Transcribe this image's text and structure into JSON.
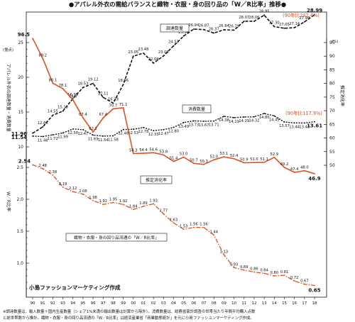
{
  "chart_data": {
    "type": "line",
    "title": "●アパレル外衣の需給バランスと織物・衣服・身の回り品の「W／R比率」推移●",
    "x": [
      "90",
      "91",
      "92",
      "93",
      "94",
      "95",
      "96",
      "97",
      "98",
      "99",
      "00",
      "01",
      "02",
      "03",
      "04",
      "05",
      "06",
      "07",
      "08",
      "09",
      "10",
      "11",
      "12",
      "13",
      "14",
      "15",
      "16",
      "17",
      "18"
    ],
    "left_axis_top": {
      "unit": "(億点)",
      "label": "アパレル外衣の調達数量・消費数量",
      "ylim": [
        10,
        25
      ],
      "ticks": [
        "10",
        "15",
        "20",
        "25"
      ]
    },
    "left_axis_bottom": {
      "label": "W／R比率",
      "ylim": [
        0.5,
        2.5
      ],
      "ticks": [
        "1.0",
        "1.5",
        "2.0",
        "2.5"
      ]
    },
    "right_axis": {
      "unit": "(%)",
      "label": "推定消化率",
      "ylim": [
        50,
        95
      ],
      "ticks": [
        "50",
        "55",
        "60",
        "65",
        "70",
        "75",
        "80",
        "85",
        "90",
        "95"
      ]
    },
    "series": [
      {
        "name": "調達数量",
        "axis": "left_top",
        "style": "dashed",
        "color": "#111111",
        "values": [
          11.96,
          12.86,
          14.55,
          15.13,
          16.95,
          18.53,
          19.12,
          17.11,
          16.29,
          18.96,
          23.05,
          23.48,
          22.04,
          23.08,
          24.53,
          25.94,
          26.94,
          26.87,
          26.37,
          26.84,
          26.79,
          28.07,
          28.06,
          28.95,
          27.3,
          27.05,
          27.14,
          27.98,
          28.99
        ],
        "labels": [
          "11.96",
          "12.86",
          "14.55",
          "15.13",
          "16.95",
          "18.53",
          "19.12",
          "17.11",
          "16.29",
          "18.96",
          "23.05",
          "23.48",
          "22.04",
          "23.08",
          "24.53",
          "25.94",
          "26.94",
          "26.87",
          "26.37",
          "26.84",
          "26.79",
          "28.07",
          "28.06",
          "28.95",
          "27.30",
          "27.05",
          "27.14",
          "27.98",
          "28.99"
        ]
      },
      {
        "name": "消費数量",
        "axis": "left_top",
        "style": "dotted",
        "color": "#111111",
        "values": [
          11.54,
          11.48,
          11.72,
          11.99,
          12.56,
          12.47,
          11.69,
          11.54,
          11.58,
          12.48,
          12.53,
          12.78,
          12.33,
          12.47,
          12.8,
          13.49,
          13.73,
          13.67,
          13.71,
          14.38,
          14.19,
          14.29,
          14.32,
          14.8,
          14.45,
          13.57,
          13.44,
          13.43,
          13.61
        ],
        "labels": [
          "11.54",
          "11.48",
          "11.72",
          "11.99",
          "12.56",
          "12.47",
          "11.69",
          "11.54",
          "11.58",
          "12.48",
          "12.53",
          "12.78",
          "12.33",
          "12.47",
          "12.80",
          "13.49",
          "13.73",
          "13.67",
          "13.71",
          "14.38",
          "14.19",
          "14.29",
          "14.32",
          "14.80",
          "14.45",
          "13.57",
          "13.44",
          "13.43",
          "13.61"
        ]
      },
      {
        "name": "推定消化率",
        "axis": "right",
        "style": "solid",
        "color": "#e0511f",
        "values": [
          96.5,
          89.2,
          80.1,
          78.1,
          74.0,
          67.4,
          62.2,
          67.4,
          70.7,
          71.1,
          54.3,
          54.4,
          54.6,
          53.8,
          51.4,
          53.0,
          50.7,
          50.3,
          52.0,
          53.1,
          52.4,
          50.9,
          51.0,
          51.1,
          52.9,
          49.2,
          47.4,
          48.0,
          46.9
        ],
        "labels": [
          "96.5",
          "89.2",
          "80.1",
          "78.1",
          "74.0",
          "67.4",
          "62.2",
          "67.4",
          "70.7",
          "71.1",
          "54.3",
          "54.4",
          "54.6",
          "53.8",
          "51.4",
          "53.0",
          "50.7",
          "50.3",
          "52.0",
          "53.1",
          "52.4",
          "50.9",
          "51.0",
          "51.1",
          "52.9",
          "49.2",
          "47.4",
          "48.0",
          "46.9"
        ]
      },
      {
        "name": "織物・衣服・身の回り品流通の「W／R比率」",
        "axis": "left_bottom",
        "style": "dashdot",
        "color": "#e0511f",
        "values": [
          2.54,
          2.48,
          2.38,
          2.19,
          2.12,
          2.08,
          1.98,
          1.92,
          1.95,
          1.92,
          1.84,
          1.89,
          1.93,
          1.77,
          1.63,
          1.53,
          1.56,
          1.56,
          1.44,
          1.13,
          0.93,
          0.89,
          0.86,
          0.84,
          0.8,
          0.81,
          0.72,
          0.67,
          0.65
        ],
        "labels": [
          "2.54",
          "2.48",
          "2.38",
          "2.19",
          "2.12",
          "2.08",
          "1.98",
          "1.92",
          "1.95",
          "1.92",
          "1.84",
          "1.89",
          "1.93",
          "1.77",
          "1.63",
          "1.53",
          "1.56",
          "1.56",
          "1.44",
          "1.13",
          "0.93",
          "0.89",
          "0.86",
          "0.84",
          "0.80",
          "0.81",
          "0.72",
          "0.67",
          "0.65"
        ]
      }
    ],
    "annotations": [
      {
        "text": "(90年比242.4%)",
        "color": "#e0511f"
      },
      {
        "text": "(90年比117.9%)",
        "color": "#e0511f"
      }
    ],
    "credit": "小島ファッションマーケティング作成",
    "footnote": [
      "※調達数量は、輸入数量＋国内生産数量（シェア1%未満の輸出数量は計算から除外）。消費数量は、総務省家計調査の世帯当たり年間平均購入点数",
      "と総世帯数から推計。織物・衣服・身の回り品流通の「W／R比率」は経済産業省「商業動態統計」を元に小島ファッションマーケティング作成。"
    ],
    "grid": false
  }
}
